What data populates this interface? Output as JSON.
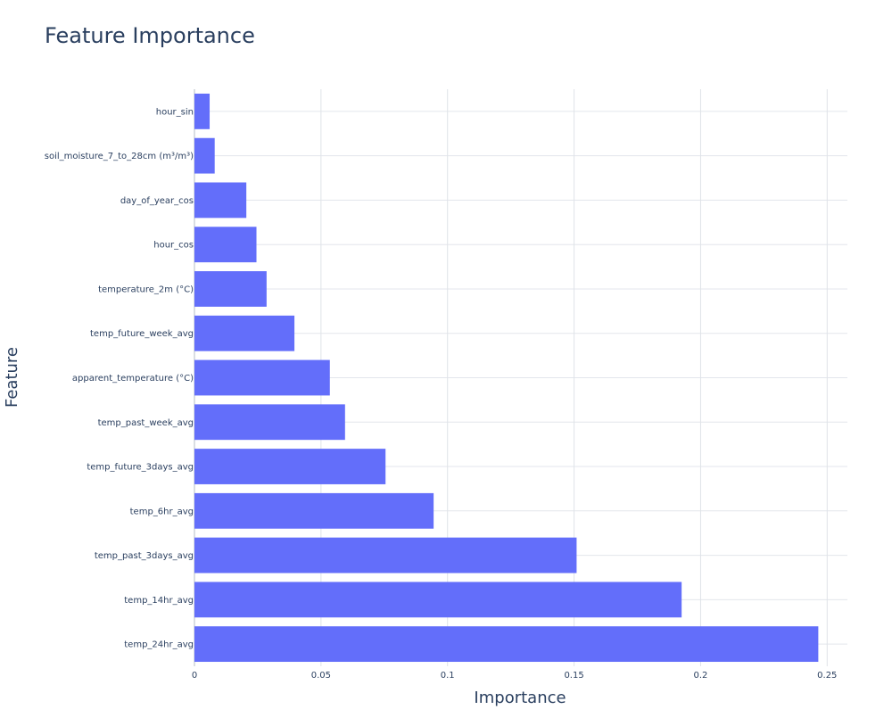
{
  "chart_data": {
    "type": "bar",
    "orientation": "horizontal",
    "title": "Feature Importance",
    "xlabel": "Importance",
    "ylabel": "Feature",
    "xlim": [
      0,
      0.258
    ],
    "x_ticks": [
      0,
      0.05,
      0.1,
      0.15,
      0.2,
      0.25
    ],
    "x_tick_labels": [
      "0",
      "0.05",
      "0.1",
      "0.15",
      "0.2",
      "0.25"
    ],
    "grid": true,
    "bar_color": "#636efa",
    "categories": [
      "hour_sin",
      "soil_moisture_7_to_28cm (m³/m³)",
      "day_of_year_cos",
      "hour_cos",
      "temperature_2m (°C)",
      "temp_future_week_avg",
      "apparent_temperature (°C)",
      "temp_past_week_avg",
      "temp_future_3days_avg",
      "temp_6hr_avg",
      "temp_past_3days_avg",
      "temp_14hr_avg",
      "temp_24hr_avg"
    ],
    "values": [
      0.006,
      0.008,
      0.0205,
      0.0245,
      0.0285,
      0.0395,
      0.0535,
      0.0595,
      0.0755,
      0.0945,
      0.151,
      0.1925,
      0.2465
    ]
  }
}
